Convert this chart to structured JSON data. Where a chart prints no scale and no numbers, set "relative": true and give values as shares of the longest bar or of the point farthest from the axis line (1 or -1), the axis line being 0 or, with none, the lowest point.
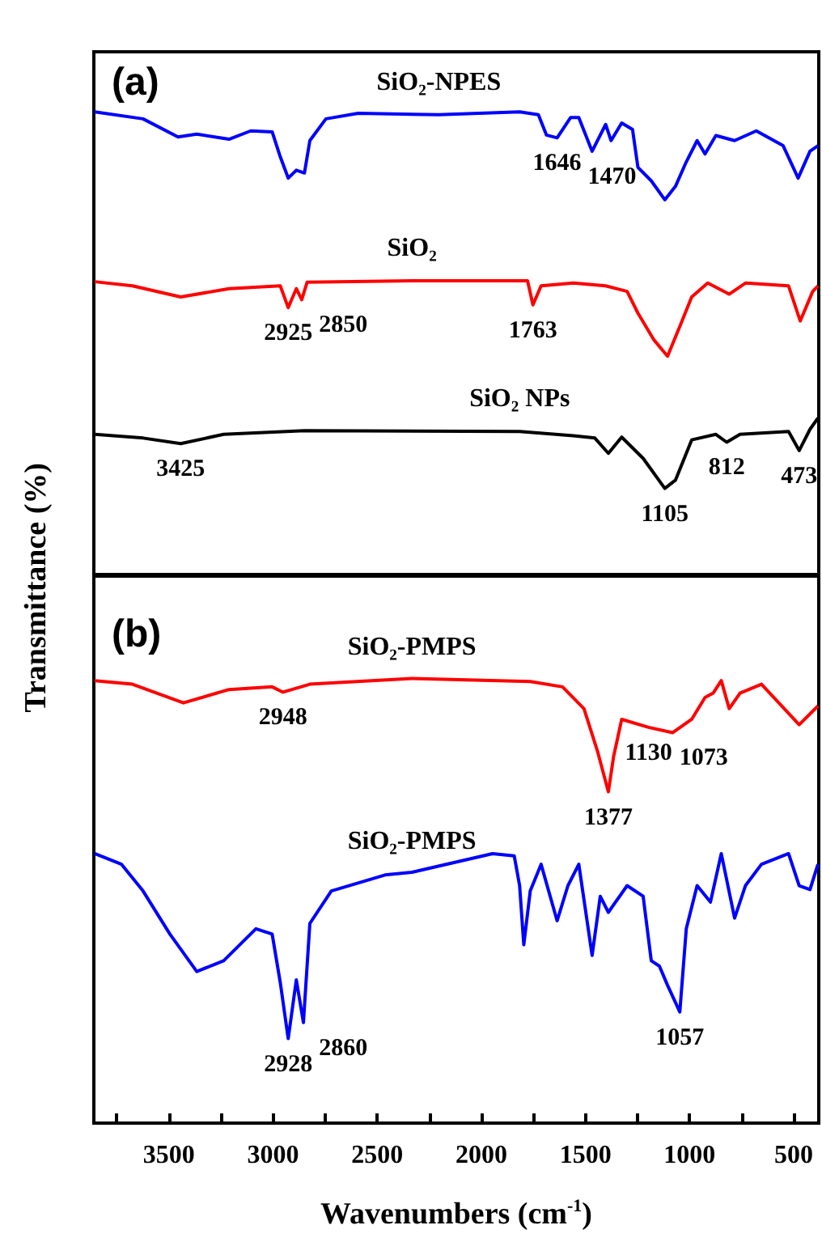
{
  "chart_data": [
    {
      "type": "line",
      "title": "(a)",
      "ylabel": "Transmittance (%)",
      "relative": true,
      "marker": "none",
      "tick_labels": false,
      "xlim": [
        3860,
        380
      ],
      "series": [
        {
          "name": "SiO₂-NPES",
          "color": "#0000ff",
          "x": [
            3856,
            3624,
            3456,
            3366,
            3211,
            3107,
            3004,
            2965,
            2927,
            2888,
            2849,
            2823,
            2746,
            2591,
            2204,
            1816,
            1726,
            1687,
            1636,
            1571,
            1532,
            1468,
            1403,
            1377,
            1326,
            1274,
            1248,
            1184,
            1119,
            1068,
            1016,
            964,
            926,
            874,
            784,
            680,
            551,
            479,
            422,
            384
          ],
          "values": [
            1.0,
            0.985,
            0.946,
            0.952,
            0.941,
            0.959,
            0.957,
            0.903,
            0.857,
            0.874,
            0.868,
            0.938,
            0.985,
            0.997,
            0.994,
            1.0,
            0.994,
            0.95,
            0.944,
            0.988,
            0.988,
            0.915,
            0.973,
            0.938,
            0.976,
            0.962,
            0.88,
            0.851,
            0.81,
            0.839,
            0.892,
            0.938,
            0.909,
            0.949,
            0.938,
            0.959,
            0.927,
            0.857,
            0.915,
            0.927
          ]
        },
        {
          "name": "SiO₂",
          "color": "#ff0000",
          "x": [
            3856,
            3675,
            3443,
            3211,
            2965,
            2927,
            2888,
            2862,
            2836,
            2333,
            1778,
            1752,
            1713,
            1558,
            1403,
            1300,
            1248,
            1171,
            1106,
            1042,
            990,
            913,
            810,
            732,
            525,
            469,
            409,
            384
          ],
          "values": [
            0.633,
            0.624,
            0.6,
            0.618,
            0.624,
            0.577,
            0.618,
            0.594,
            0.632,
            0.635,
            0.635,
            0.583,
            0.624,
            0.63,
            0.624,
            0.612,
            0.565,
            0.507,
            0.472,
            0.542,
            0.6,
            0.63,
            0.606,
            0.63,
            0.624,
            0.548,
            0.612,
            0.624
          ]
        },
        {
          "name": "SiO₂ NPs",
          "color": "#000000",
          "x": [
            3856,
            3624,
            3443,
            3237,
            2849,
            1816,
            1558,
            1455,
            1390,
            1326,
            1223,
            1119,
            1068,
            990,
            874,
            822,
            758,
            525,
            474,
            422,
            384
          ],
          "values": [
            0.303,
            0.295,
            0.283,
            0.303,
            0.311,
            0.309,
            0.3,
            0.295,
            0.262,
            0.297,
            0.251,
            0.186,
            0.204,
            0.291,
            0.303,
            0.286,
            0.303,
            0.309,
            0.268,
            0.314,
            0.338
          ]
        }
      ],
      "annotations": [
        {
          "text": "1646",
          "x": 1636,
          "y": 0.944
        },
        {
          "text": "1470",
          "x": 1468,
          "y": 0.915
        },
        {
          "text": "2925",
          "x": 2927,
          "y": 0.577
        },
        {
          "text": "2850",
          "x": 2862,
          "y": 0.594
        },
        {
          "text": "1763",
          "x": 1752,
          "y": 0.583
        },
        {
          "text": "3425",
          "x": 3443,
          "y": 0.283
        },
        {
          "text": "1105",
          "x": 1119,
          "y": 0.186
        },
        {
          "text": "812",
          "x": 822,
          "y": 0.286
        },
        {
          "text": "473",
          "x": 474,
          "y": 0.268
        }
      ]
    },
    {
      "type": "line",
      "title": "(b)",
      "xlabel": "Wavenumbers (cm$^{-1}$)",
      "relative": true,
      "marker": "none",
      "tick_labels": "x",
      "xlim": [
        3860,
        380
      ],
      "xticks": [
        {
          "value": 3750,
          "label": null
        },
        3500,
        {
          "value": 3250,
          "label": null
        },
        3000,
        {
          "value": 2750,
          "label": null
        },
        2500,
        {
          "value": 2250,
          "label": null
        },
        2000,
        {
          "value": 1750,
          "label": null
        },
        1500,
        {
          "value": 1250,
          "label": null
        },
        1000,
        {
          "value": 750,
          "label": null
        },
        500
      ],
      "series": [
        {
          "name": "SiO₂-PMPS",
          "color": "#ff0000",
          "x": [
            3856,
            3675,
            3430,
            3211,
            3004,
            2952,
            2823,
            2333,
            1765,
            1610,
            1507,
            1442,
            1390,
            1365,
            1326,
            1197,
            1081,
            990,
            926,
            887,
            848,
            810,
            758,
            655,
            474,
            384
          ],
          "values": [
            0.995,
            0.987,
            0.945,
            0.975,
            0.981,
            0.969,
            0.987,
            1.0,
            0.993,
            0.981,
            0.932,
            0.836,
            0.745,
            0.824,
            0.908,
            0.89,
            0.878,
            0.908,
            0.957,
            0.967,
            0.995,
            0.932,
            0.967,
            0.987,
            0.896,
            0.938
          ]
        },
        {
          "name": "SiO₂-PMPS",
          "color": "#0000ff",
          "x": [
            3856,
            3727,
            3624,
            3495,
            3366,
            3237,
            3082,
            3004,
            2965,
            2927,
            2888,
            2854,
            2823,
            2720,
            2462,
            2333,
            1946,
            1842,
            1816,
            1796,
            1765,
            1713,
            1636,
            1584,
            1532,
            1468,
            1429,
            1390,
            1300,
            1223,
            1184,
            1145,
            1106,
            1047,
            1016,
            964,
            900,
            848,
            784,
            732,
            655,
            525,
            474,
            422,
            384
          ],
          "values": [
            0.606,
            0.582,
            0.522,
            0.425,
            0.341,
            0.365,
            0.437,
            0.425,
            0.316,
            0.19,
            0.322,
            0.226,
            0.449,
            0.522,
            0.558,
            0.564,
            0.606,
            0.601,
            0.534,
            0.401,
            0.522,
            0.582,
            0.455,
            0.534,
            0.582,
            0.377,
            0.51,
            0.474,
            0.534,
            0.51,
            0.365,
            0.353,
            0.31,
            0.25,
            0.437,
            0.534,
            0.497,
            0.606,
            0.461,
            0.534,
            0.582,
            0.606,
            0.534,
            0.525,
            0.582
          ]
        }
      ],
      "annotations": [
        {
          "text": "2948",
          "x": 2952,
          "y": 0.969
        },
        {
          "text": "1130",
          "x": 1197,
          "y": 0.89
        },
        {
          "text": "1073",
          "x": 1081,
          "y": 0.878
        },
        {
          "text": "1377",
          "x": 1390,
          "y": 0.745
        },
        {
          "text": "2928",
          "x": 2927,
          "y": 0.19
        },
        {
          "text": "2860",
          "x": 2854,
          "y": 0.226
        },
        {
          "text": "1057",
          "x": 1047,
          "y": 0.25
        }
      ]
    }
  ]
}
